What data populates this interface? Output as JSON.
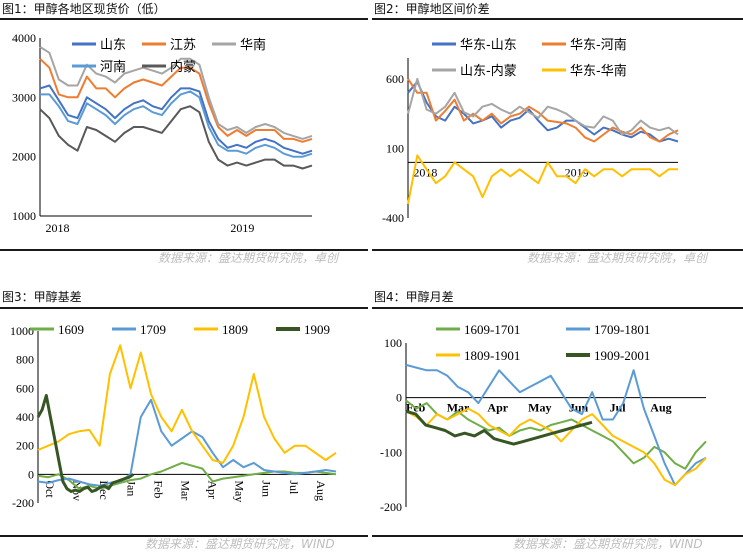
{
  "colors": {
    "blue": "#4472C4",
    "orange": "#ED7D31",
    "gray": "#A5A5A5",
    "yellow": "#FFC000",
    "green": "#70AD47",
    "darkgreen": "#375623",
    "lightblue": "#5B9BD5",
    "dark": "#595959"
  },
  "source_text": "数据来源：盛达期货研究院，卓创",
  "source_text_wind": "数据来源：盛达期货研究院，WIND",
  "chart_data": [
    {
      "type": "line",
      "title": "图1：甲醇各地区现货价（低）",
      "ylim": [
        1000,
        4000
      ],
      "yticks": [
        "1000",
        "2000",
        "3000",
        "4000"
      ],
      "xticks": [
        "2018",
        "2019"
      ],
      "legend_ncol": 3,
      "series": [
        {
          "name": "山东",
          "color": "blue",
          "values": [
            3150,
            3200,
            2950,
            2700,
            2650,
            3000,
            2900,
            2800,
            2650,
            2800,
            2900,
            2950,
            2850,
            2800,
            3000,
            3150,
            3150,
            3100,
            2600,
            2300,
            2150,
            2200,
            2150,
            2250,
            2300,
            2250,
            2150,
            2100,
            2050,
            2100
          ]
        },
        {
          "name": "江苏",
          "color": "orange",
          "values": [
            3650,
            3500,
            3050,
            3000,
            3000,
            3350,
            3150,
            3150,
            3000,
            3150,
            3250,
            3300,
            3250,
            3200,
            3350,
            3500,
            3500,
            3400,
            2900,
            2500,
            2350,
            2450,
            2350,
            2450,
            2450,
            2450,
            2300,
            2300,
            2250,
            2300
          ]
        },
        {
          "name": "华南",
          "color": "gray",
          "values": [
            3850,
            3750,
            3300,
            3200,
            3200,
            3550,
            3400,
            3350,
            3250,
            3400,
            3450,
            3500,
            3450,
            3400,
            3500,
            3650,
            3650,
            3550,
            3000,
            2550,
            2450,
            2500,
            2400,
            2500,
            2550,
            2500,
            2400,
            2350,
            2300,
            2350
          ]
        },
        {
          "name": "河南",
          "color": "lightblue",
          "values": [
            3050,
            3050,
            2850,
            2600,
            2550,
            2900,
            2800,
            2700,
            2550,
            2700,
            2800,
            2850,
            2750,
            2700,
            2900,
            3050,
            3100,
            3000,
            2500,
            2200,
            2100,
            2100,
            2050,
            2150,
            2200,
            2150,
            2050,
            2000,
            2000,
            2050
          ]
        },
        {
          "name": "内蒙",
          "color": "dark",
          "values": [
            2800,
            2650,
            2350,
            2200,
            2100,
            2500,
            2450,
            2350,
            2250,
            2400,
            2500,
            2500,
            2450,
            2400,
            2600,
            2800,
            2850,
            2750,
            2250,
            1950,
            1850,
            1900,
            1850,
            1900,
            1950,
            1950,
            1850,
            1850,
            1800,
            1850
          ]
        }
      ]
    },
    {
      "type": "line",
      "title": "图2：甲醇地区间价差",
      "ylim": [
        -400,
        750
      ],
      "yticks": [
        "-400",
        "100",
        "600"
      ],
      "xticks": [
        "2018",
        "2019"
      ],
      "legend_ncol": 2,
      "series": [
        {
          "name": "华东-山东",
          "color": "blue",
          "values": [
            500,
            580,
            430,
            330,
            300,
            400,
            350,
            280,
            300,
            330,
            250,
            300,
            320,
            380,
            300,
            230,
            250,
            300,
            300,
            250,
            200,
            250,
            230,
            200,
            180,
            220,
            200,
            150,
            170,
            150
          ]
        },
        {
          "name": "华东-河南",
          "color": "orange",
          "values": [
            600,
            500,
            500,
            300,
            370,
            450,
            300,
            350,
            300,
            350,
            280,
            330,
            350,
            400,
            360,
            300,
            290,
            280,
            250,
            180,
            150,
            200,
            250,
            220,
            200,
            250,
            180,
            150,
            200,
            230
          ]
        },
        {
          "name": "山东-内蒙",
          "color": "gray",
          "values": [
            350,
            600,
            380,
            350,
            400,
            500,
            360,
            330,
            400,
            420,
            380,
            350,
            400,
            360,
            320,
            400,
            380,
            350,
            300,
            260,
            250,
            330,
            300,
            200,
            230,
            300,
            250,
            230,
            250,
            200
          ]
        },
        {
          "name": "华东-华南",
          "color": "yellow",
          "values": [
            -300,
            50,
            -50,
            -150,
            -100,
            0,
            -50,
            -100,
            -250,
            -100,
            -50,
            -100,
            -50,
            -100,
            -150,
            0,
            -100,
            -100,
            -150,
            -50,
            -100,
            -50,
            -50,
            -100,
            -50,
            -50,
            -50,
            -100,
            -50,
            -50
          ]
        }
      ]
    },
    {
      "type": "line",
      "title": "图3：甲醇基差",
      "ylim": [
        -200,
        1000
      ],
      "yticks": [
        "-200",
        "0",
        "200",
        "400",
        "600",
        "800",
        "1000"
      ],
      "xticks": [
        "Oct",
        "Nov",
        "Dec",
        "Jan",
        "Feb",
        "Mar",
        "Apr",
        "May",
        "Jun",
        "Jul",
        "Aug"
      ],
      "legend_ncol": 4,
      "series": [
        {
          "name": "1609",
          "color": "green",
          "values": [
            -10,
            -20,
            0,
            -40,
            -100,
            -80,
            -100,
            -80,
            -60,
            -40,
            -30,
            0,
            20,
            50,
            80,
            60,
            40,
            -50,
            -30,
            -20,
            -10,
            0,
            10,
            20,
            20,
            10,
            10,
            20,
            10,
            0
          ]
        },
        {
          "name": "1709",
          "color": "lightblue",
          "values": [
            -50,
            -60,
            -40,
            -30,
            -50,
            -70,
            -80,
            -60,
            -50,
            0,
            400,
            520,
            300,
            200,
            250,
            300,
            260,
            150,
            50,
            100,
            50,
            80,
            30,
            20,
            10,
            0,
            10,
            20,
            30,
            20
          ]
        },
        {
          "name": "1809",
          "color": "yellow",
          "values": [
            170,
            200,
            230,
            280,
            300,
            310,
            200,
            700,
            900,
            600,
            850,
            560,
            400,
            300,
            450,
            300,
            200,
            100,
            80,
            200,
            400,
            700,
            400,
            250,
            150,
            200,
            200,
            150,
            100,
            150
          ]
        },
        {
          "name": "1909",
          "color": "darkgreen",
          "values": [
            400,
            450,
            550,
            400,
            250,
            100,
            -50,
            -100,
            -120,
            -110,
            -120,
            -100,
            -90,
            -120,
            -110,
            -90,
            -80,
            -100,
            -60,
            -50,
            -40,
            -30,
            -20,
            0
          ]
        }
      ]
    },
    {
      "type": "line",
      "title": "图4：甲醇月差",
      "ylim": [
        -200,
        100
      ],
      "yticks": [
        "-200",
        "-100",
        "0",
        "100"
      ],
      "xticks": [
        "Feb",
        "Mar",
        "Apr",
        "May",
        "Jun",
        "Jul",
        "Aug"
      ],
      "legend_ncol": 2,
      "series": [
        {
          "name": "1609-1701",
          "color": "green",
          "values": [
            -5,
            -20,
            -10,
            -30,
            -40,
            -25,
            -40,
            -50,
            -60,
            -55,
            -70,
            -60,
            -55,
            -60,
            -50,
            -45,
            -40,
            -50,
            -60,
            -70,
            -80,
            -100,
            -120,
            -110,
            -90,
            -100,
            -120,
            -130,
            -100,
            -80
          ]
        },
        {
          "name": "1709-1801",
          "color": "lightblue",
          "values": [
            60,
            55,
            50,
            50,
            40,
            20,
            10,
            -10,
            20,
            50,
            30,
            10,
            20,
            30,
            40,
            10,
            -20,
            -30,
            10,
            -40,
            -40,
            -10,
            50,
            -20,
            -70,
            -120,
            -160,
            -140,
            -120,
            -110
          ]
        },
        {
          "name": "1809-1901",
          "color": "yellow",
          "values": [
            -25,
            -35,
            -50,
            -30,
            -40,
            -30,
            -20,
            -30,
            -50,
            -60,
            -70,
            -50,
            -40,
            -50,
            -60,
            -80,
            -60,
            -40,
            -30,
            -50,
            -70,
            -80,
            -90,
            -100,
            -120,
            -150,
            -160,
            -140,
            -130,
            -110
          ]
        },
        {
          "name": "1909-2001",
          "color": "darkgreen",
          "values": [
            -25,
            -30,
            -50,
            -55,
            -60,
            -70,
            -65,
            -70,
            -60,
            -75,
            -80,
            -85,
            -80,
            -75,
            -70,
            -65,
            -60,
            -55,
            -50,
            -45
          ]
        }
      ]
    }
  ]
}
